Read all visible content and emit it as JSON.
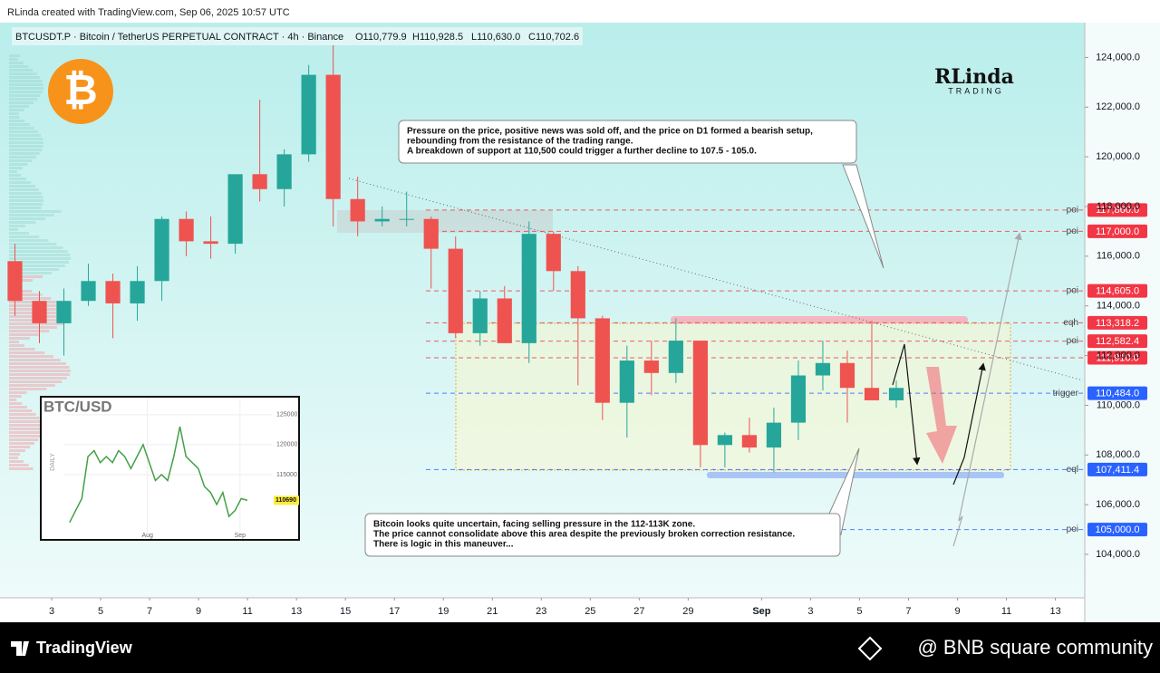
{
  "header": {
    "author_line": "RLinda created with TradingView.com, Sep 06, 2025 10:57 UTC",
    "symbol": "BTCUSDT.P · Bitcoin / TetherUS PERPETUAL CONTRACT · 4h · Binance",
    "ohlc": [
      "O110,779.9",
      "H110,928.5",
      "L110,630.0",
      "C110,702.6"
    ]
  },
  "logo": {
    "symbol": "₿",
    "brand": "RLinda",
    "brand_sub": "TRADING"
  },
  "footer": {
    "left": "TradingView",
    "right": "@ BNB square community"
  },
  "chart_data": {
    "type": "candlestick",
    "up_color": "#26a69a",
    "down_color": "#ef5350",
    "grid": false,
    "xlim": [
      1.26,
      45.2
    ],
    "xticks": [
      3,
      5,
      7,
      9,
      11,
      13,
      15,
      17,
      19,
      21,
      23,
      25,
      27,
      29,
      {
        "value": 32,
        "label": "Sep"
      },
      {
        "value": 34,
        "label": "3"
      },
      {
        "value": 36,
        "label": "5"
      },
      {
        "value": 38,
        "label": "7"
      },
      {
        "value": 40,
        "label": "9"
      },
      {
        "value": 42,
        "label": "11"
      },
      {
        "value": 44,
        "label": "13"
      }
    ],
    "ylim": [
      102250,
      125400
    ],
    "yticks": [
      {
        "value": 104000,
        "label": "104,000.0"
      },
      {
        "value": 106000,
        "label": "106,000.0"
      },
      {
        "value": 108000,
        "label": "108,000.0"
      },
      {
        "value": 110000,
        "label": "110,000.0"
      },
      {
        "value": 112000,
        "label": "112,000.0"
      },
      {
        "value": 114000,
        "label": "114,000.0"
      },
      {
        "value": 116000,
        "label": "116,000.0"
      },
      {
        "value": 118000,
        "label": "118,000.0"
      },
      {
        "value": 120000,
        "label": "120,000.0"
      },
      {
        "value": 122000,
        "label": "122,000.0"
      },
      {
        "value": 124000,
        "label": "124,000.0"
      }
    ],
    "x": [
      1.5,
      2.5,
      3.5,
      4.5,
      5.5,
      6.5,
      7.5,
      8.5,
      9.5,
      10.5,
      11.5,
      12.5,
      13.5,
      14.5,
      15.5,
      16.5,
      17.5,
      18.5,
      19.5,
      20.5,
      21.5,
      22.5,
      23.5,
      24.5,
      25.5,
      26.5,
      27.5,
      28.5,
      29.5,
      30.5,
      31.5,
      32.5,
      33.5,
      34.5,
      35.5,
      36.5,
      37.5
    ],
    "open": [
      115800,
      114200,
      113300,
      114200,
      115000,
      114100,
      115000,
      117500,
      116600,
      116500,
      119300,
      118700,
      120100,
      123300,
      118300,
      117400,
      117500,
      117500,
      116300,
      112900,
      114300,
      112500,
      116900,
      115400,
      113500,
      110100,
      111800,
      111300,
      112600,
      108400,
      108800,
      108300,
      109300,
      111200,
      111700,
      110700,
      110200
    ],
    "high": [
      116500,
      114600,
      114700,
      115700,
      115300,
      115600,
      117600,
      117800,
      117600,
      119300,
      122300,
      120300,
      123700,
      124500,
      119200,
      118000,
      118600,
      117600,
      116800,
      114600,
      114800,
      117400,
      117000,
      115600,
      113600,
      112400,
      112600,
      113500,
      112600,
      108900,
      109500,
      109900,
      111800,
      112600,
      112200,
      113400,
      111000
    ],
    "low": [
      113600,
      112500,
      112000,
      114000,
      112700,
      113400,
      114200,
      116000,
      115900,
      116100,
      118200,
      118000,
      119800,
      117200,
      116800,
      117200,
      117200,
      114700,
      112700,
      112400,
      112500,
      111700,
      114600,
      110800,
      109400,
      108700,
      110400,
      110900,
      107500,
      107500,
      108100,
      107300,
      108600,
      110600,
      109300,
      110400,
      109900
    ],
    "close": [
      114200,
      113300,
      114200,
      115000,
      114100,
      115000,
      117500,
      116600,
      116500,
      119300,
      118700,
      120100,
      123300,
      118300,
      117400,
      117500,
      117500,
      116300,
      112900,
      114300,
      112500,
      116900,
      115400,
      113500,
      110100,
      111800,
      111300,
      112600,
      108400,
      108800,
      108300,
      109300,
      111200,
      111700,
      110700,
      110200,
      110700
    ],
    "levels": [
      {
        "value": 117860,
        "label": "117,860.0",
        "tag": "poi",
        "color": "#f23645"
      },
      {
        "value": 117000,
        "label": "117,000.0",
        "tag": "poi",
        "color": "#f23645"
      },
      {
        "value": 114605,
        "label": "114,605.0",
        "tag": "poi",
        "color": "#f23645"
      },
      {
        "value": 113318.2,
        "label": "113,318.2",
        "tag": "eqh",
        "color": "#f23645"
      },
      {
        "value": 112582.4,
        "label": "112,582.4",
        "tag": "poi",
        "color": "#f23645"
      },
      {
        "value": 111910,
        "label": "111,910.0",
        "color": "#f23645"
      },
      {
        "value": 110484,
        "label": "110,484.0",
        "tag": "trigger",
        "color": "#2962ff"
      },
      {
        "value": 107411.4,
        "label": "107,411.4",
        "tag": "eql",
        "color": "#2962ff"
      },
      {
        "value": 105000,
        "label": "105,000.0",
        "tag": "poi",
        "color": "#2962ff"
      }
    ],
    "annotations": [
      {
        "lines": [
          "Pressure on the price, positive news was sold off, and the price on D1 formed a bearish setup,",
          "rebounding from the resistance of the trading range.",
          "A breakdown of support at 110,500 could trigger a further decline to 107.5 - 105.0."
        ]
      },
      {
        "lines": [
          "Bitcoin looks quite uncertain, facing selling pressure in the 112-113K zone.",
          "The price cannot consolidate above this area despite the previously broken correction resistance.",
          "There is logic in this maneuver..."
        ]
      }
    ]
  },
  "inset": {
    "type": "line",
    "title": "BTC/USD",
    "timeframe": "DAILY",
    "color": "#43a047",
    "ylim": [
      105000,
      127700
    ],
    "yticks": [
      115000,
      120000,
      125000
    ],
    "xlim": [
      -1,
      33
    ],
    "xticks": [
      {
        "value": 12.7,
        "label": "Aug"
      },
      {
        "value": 27.8,
        "label": "Sep"
      }
    ],
    "values": [
      107000,
      109000,
      111000,
      118000,
      119000,
      117000,
      118000,
      117000,
      119000,
      118000,
      116000,
      118000,
      120000,
      117000,
      114000,
      115000,
      114000,
      118000,
      123000,
      118000,
      117000,
      116000,
      113000,
      112000,
      110000,
      112000,
      108000,
      109000,
      111000,
      110690
    ],
    "last_price": 110690
  }
}
